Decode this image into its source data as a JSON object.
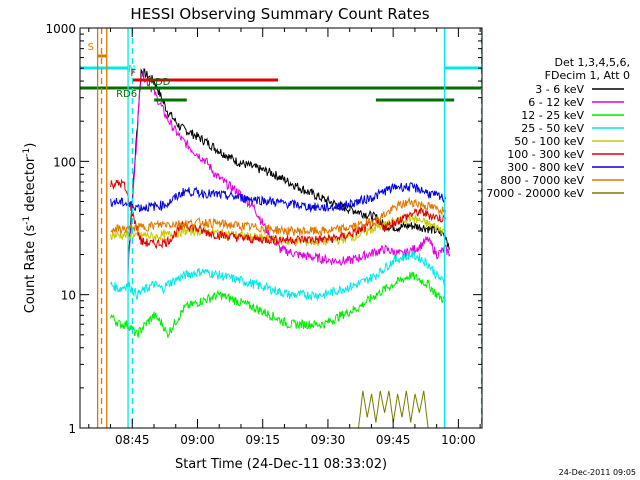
{
  "chart_data": {
    "type": "line",
    "title": "HESSI Observing Summary Count Rates",
    "xlabel": "Start Time (24-Dec-11 08:33:02)",
    "ylabel_main": "Count Rate (s",
    "ylabel_sup1": "-1",
    "ylabel_mid": " detector",
    "ylabel_sup2": "-1",
    "ylabel_end": ")",
    "yscale": "log",
    "ylim": [
      1,
      1000
    ],
    "xlim_minutes": [
      -0.05,
      92.4
    ],
    "x_ticks": [
      {
        "label": "08:45",
        "t": 11.97
      },
      {
        "label": "09:00",
        "t": 26.97
      },
      {
        "label": "09:15",
        "t": 41.97
      },
      {
        "label": "09:30",
        "t": 56.97
      },
      {
        "label": "09:45",
        "t": 71.97
      },
      {
        "label": "10:00",
        "t": 86.97
      }
    ],
    "y_ticks": [
      {
        "label": "1",
        "v": 1
      },
      {
        "label": "10",
        "v": 10
      },
      {
        "label": "100",
        "v": 100
      },
      {
        "label": "1000",
        "v": 1000
      }
    ],
    "legend_header": [
      "Det 1,3,4,5,6,",
      "FDecim 1, Att 0"
    ],
    "legend_position": "right",
    "timestamp": "24-Dec-2011 09:05",
    "series": [
      {
        "name": "3 - 6 keV",
        "color": "#000000",
        "values": [
          [
            11,
            18
          ],
          [
            14,
            480
          ],
          [
            17,
            400
          ],
          [
            20,
            240
          ],
          [
            23,
            180
          ],
          [
            26,
            160
          ],
          [
            29,
            140
          ],
          [
            32,
            120
          ],
          [
            36,
            100
          ],
          [
            40,
            90
          ],
          [
            44,
            82
          ],
          [
            48,
            70
          ],
          [
            52,
            60
          ],
          [
            56,
            52
          ],
          [
            60,
            46
          ],
          [
            64,
            42
          ],
          [
            68,
            38
          ],
          [
            70,
            33
          ],
          [
            73,
            32
          ],
          [
            76,
            33
          ],
          [
            79,
            32
          ],
          [
            82,
            30
          ],
          [
            84,
            28
          ],
          [
            85,
            22
          ]
        ]
      },
      {
        "name": "6 - 12 keV",
        "color": "#e000e0",
        "values": [
          [
            11,
            15
          ],
          [
            14,
            470
          ],
          [
            17,
            330
          ],
          [
            20,
            210
          ],
          [
            23,
            150
          ],
          [
            26,
            120
          ],
          [
            29,
            100
          ],
          [
            31,
            80
          ],
          [
            33,
            70
          ],
          [
            36,
            60
          ],
          [
            38,
            52
          ],
          [
            40,
            45
          ],
          [
            43,
            30
          ],
          [
            46,
            22
          ],
          [
            50,
            20
          ],
          [
            54,
            19
          ],
          [
            58,
            18
          ],
          [
            62,
            18
          ],
          [
            66,
            20
          ],
          [
            70,
            22
          ],
          [
            74,
            20
          ],
          [
            78,
            23
          ],
          [
            80,
            26
          ],
          [
            82,
            20
          ],
          [
            84,
            22
          ],
          [
            85,
            20
          ]
        ]
      },
      {
        "name": "12 - 25 keV",
        "color": "#00ee00",
        "values": [
          [
            7,
            7
          ],
          [
            9,
            6
          ],
          [
            11,
            6
          ],
          [
            13,
            5
          ],
          [
            15,
            6
          ],
          [
            17,
            7
          ],
          [
            19,
            6
          ],
          [
            20,
            5
          ],
          [
            24,
            8
          ],
          [
            28,
            9
          ],
          [
            32,
            10
          ],
          [
            36,
            9
          ],
          [
            40,
            8
          ],
          [
            44,
            7
          ],
          [
            48,
            6
          ],
          [
            52,
            6
          ],
          [
            56,
            6
          ],
          [
            60,
            7
          ],
          [
            64,
            8
          ],
          [
            68,
            10
          ],
          [
            72,
            12
          ],
          [
            76,
            14
          ],
          [
            78,
            13
          ],
          [
            80,
            12
          ],
          [
            82,
            10
          ],
          [
            84,
            9
          ]
        ]
      },
      {
        "name": "25 - 50 keV",
        "color": "#00e8e8",
        "values": [
          [
            7,
            12
          ],
          [
            9,
            11
          ],
          [
            11,
            12
          ],
          [
            13,
            10
          ],
          [
            15,
            11
          ],
          [
            17,
            12
          ],
          [
            19,
            11
          ],
          [
            20,
            12
          ],
          [
            24,
            14
          ],
          [
            28,
            15
          ],
          [
            32,
            14
          ],
          [
            36,
            13
          ],
          [
            40,
            12
          ],
          [
            44,
            11
          ],
          [
            48,
            10
          ],
          [
            52,
            10
          ],
          [
            56,
            10
          ],
          [
            60,
            11
          ],
          [
            64,
            12
          ],
          [
            68,
            14
          ],
          [
            72,
            18
          ],
          [
            76,
            20
          ],
          [
            78,
            19
          ],
          [
            80,
            17
          ],
          [
            82,
            14
          ],
          [
            84,
            12
          ]
        ]
      },
      {
        "name": "50 - 100 keV",
        "color": "#c8c800",
        "values": [
          [
            7,
            28
          ],
          [
            11,
            28
          ],
          [
            13,
            27
          ],
          [
            15,
            28
          ],
          [
            17,
            27
          ],
          [
            19,
            28
          ],
          [
            20,
            28
          ],
          [
            24,
            30
          ],
          [
            28,
            30
          ],
          [
            32,
            29
          ],
          [
            36,
            28
          ],
          [
            40,
            27
          ],
          [
            44,
            26
          ],
          [
            48,
            25
          ],
          [
            52,
            25
          ],
          [
            56,
            25
          ],
          [
            60,
            26
          ],
          [
            64,
            28
          ],
          [
            68,
            32
          ],
          [
            72,
            35
          ],
          [
            76,
            38
          ],
          [
            78,
            36
          ],
          [
            80,
            34
          ],
          [
            82,
            32
          ],
          [
            84,
            30
          ]
        ]
      },
      {
        "name": "100 - 300 keV",
        "color": "#e00000",
        "values": [
          [
            7,
            68
          ],
          [
            10,
            68
          ],
          [
            14,
            25
          ],
          [
            17,
            24
          ],
          [
            20,
            25
          ],
          [
            24,
            34
          ],
          [
            28,
            30
          ],
          [
            32,
            28
          ],
          [
            36,
            27
          ],
          [
            40,
            26
          ],
          [
            44,
            26
          ],
          [
            48,
            26
          ],
          [
            52,
            26
          ],
          [
            56,
            26
          ],
          [
            60,
            27
          ],
          [
            64,
            30
          ],
          [
            68,
            35
          ],
          [
            70,
            32
          ],
          [
            73,
            36
          ],
          [
            76,
            40
          ],
          [
            78,
            42
          ],
          [
            80,
            40
          ],
          [
            82,
            38
          ],
          [
            84,
            37
          ]
        ]
      },
      {
        "name": "300 - 800 keV",
        "color": "#0000e0",
        "values": [
          [
            7,
            50
          ],
          [
            10,
            49
          ],
          [
            14,
            45
          ],
          [
            17,
            46
          ],
          [
            20,
            48
          ],
          [
            24,
            60
          ],
          [
            28,
            58
          ],
          [
            32,
            56
          ],
          [
            36,
            54
          ],
          [
            40,
            52
          ],
          [
            44,
            50
          ],
          [
            48,
            48
          ],
          [
            52,
            46
          ],
          [
            56,
            45
          ],
          [
            60,
            46
          ],
          [
            64,
            50
          ],
          [
            68,
            55
          ],
          [
            70,
            60
          ],
          [
            73,
            65
          ],
          [
            76,
            64
          ],
          [
            78,
            62
          ],
          [
            80,
            58
          ],
          [
            82,
            55
          ],
          [
            84,
            52
          ]
        ]
      },
      {
        "name": "800 - 7000 keV",
        "color": "#e07800",
        "values": [
          [
            7,
            31
          ],
          [
            10,
            31
          ],
          [
            14,
            32
          ],
          [
            17,
            33
          ],
          [
            20,
            34
          ],
          [
            24,
            34
          ],
          [
            28,
            35
          ],
          [
            32,
            34
          ],
          [
            36,
            33
          ],
          [
            40,
            32
          ],
          [
            44,
            31
          ],
          [
            48,
            30
          ],
          [
            52,
            30
          ],
          [
            56,
            30
          ],
          [
            60,
            31
          ],
          [
            64,
            33
          ],
          [
            68,
            36
          ],
          [
            70,
            40
          ],
          [
            73,
            46
          ],
          [
            76,
            50
          ],
          [
            78,
            48
          ],
          [
            80,
            46
          ],
          [
            82,
            44
          ],
          [
            84,
            43
          ]
        ]
      },
      {
        "name": "7000 - 20000 keV",
        "color": "#7a7a00",
        "values": [
          [
            64,
            1
          ],
          [
            65,
            1.9
          ],
          [
            66,
            1.2
          ],
          [
            67,
            1.8
          ],
          [
            68,
            1.1
          ],
          [
            69,
            1.9
          ],
          [
            70,
            1.3
          ],
          [
            71,
            1.9
          ],
          [
            72,
            1.1
          ],
          [
            73,
            1.8
          ],
          [
            74,
            1.2
          ],
          [
            75,
            1.9
          ],
          [
            76,
            1.1
          ],
          [
            77,
            1.8
          ],
          [
            78,
            1.3
          ],
          [
            79,
            1.9
          ],
          [
            80,
            1
          ]
        ]
      }
    ],
    "flags": [
      {
        "label": "S",
        "color": "#e07800",
        "t_start": 4.0,
        "t_end": 6.2,
        "level_frac": 0.93
      },
      {
        "label": "N",
        "color": "#00e8e8",
        "t_start": -0.05,
        "t_end": 11.0,
        "level_frac": 0.9
      },
      {
        "label": "N",
        "color": "#00e8e8",
        "t_start": 83.8,
        "t_end": 92.4,
        "level_frac": 0.9
      },
      {
        "label": "F",
        "color": "#e00000",
        "t_start": 12.0,
        "t_end": 45.5,
        "level_frac": 0.87
      },
      {
        "label": "RDD",
        "color": "#007000",
        "t_start": -0.05,
        "t_end": 92.4,
        "level_frac": 0.85
      },
      {
        "label": "RD6",
        "color": "#007000",
        "t_start": 17.0,
        "t_end": 24.5,
        "level_frac": 0.82
      },
      {
        "label": "",
        "color": "#007000",
        "t_start": 68.0,
        "t_end": 86.0,
        "level_frac": 0.82
      }
    ],
    "vlines": [
      {
        "t": 4.9,
        "color": "#e07800",
        "dash": true
      },
      {
        "t": 4.0,
        "color": "#e07800",
        "dash": false
      },
      {
        "t": 6.1,
        "color": "#e07800",
        "dash": false
      },
      {
        "t": 11.0,
        "color": "#00e8e8",
        "dash": false
      },
      {
        "t": 12.0,
        "color": "#00e8e8",
        "dash": true
      },
      {
        "t": 83.8,
        "color": "#00e8e8",
        "dash": false
      },
      {
        "t": 92.3,
        "color": "#00e8e8",
        "dash": true
      }
    ]
  }
}
